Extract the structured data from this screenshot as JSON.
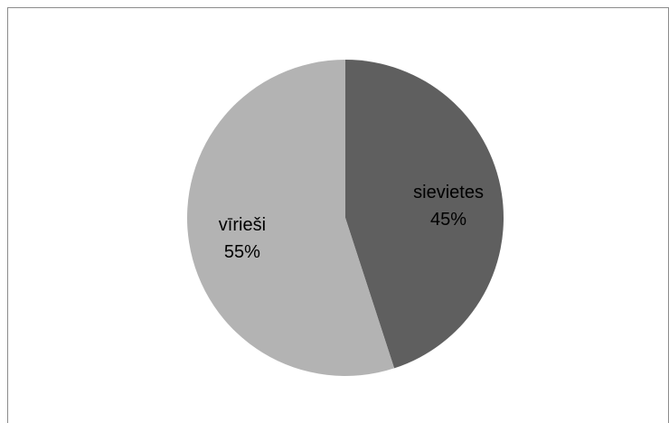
{
  "chart_data": {
    "type": "pie",
    "title": "",
    "slices": [
      {
        "label": "sievietes",
        "value": 45,
        "percent_label": "45%",
        "color": "#5f5f5f"
      },
      {
        "label": "vīrieši",
        "value": 55,
        "percent_label": "55%",
        "color": "#b3b3b3"
      }
    ],
    "legend": "none",
    "start_angle_deg": 0,
    "direction": "clockwise"
  }
}
